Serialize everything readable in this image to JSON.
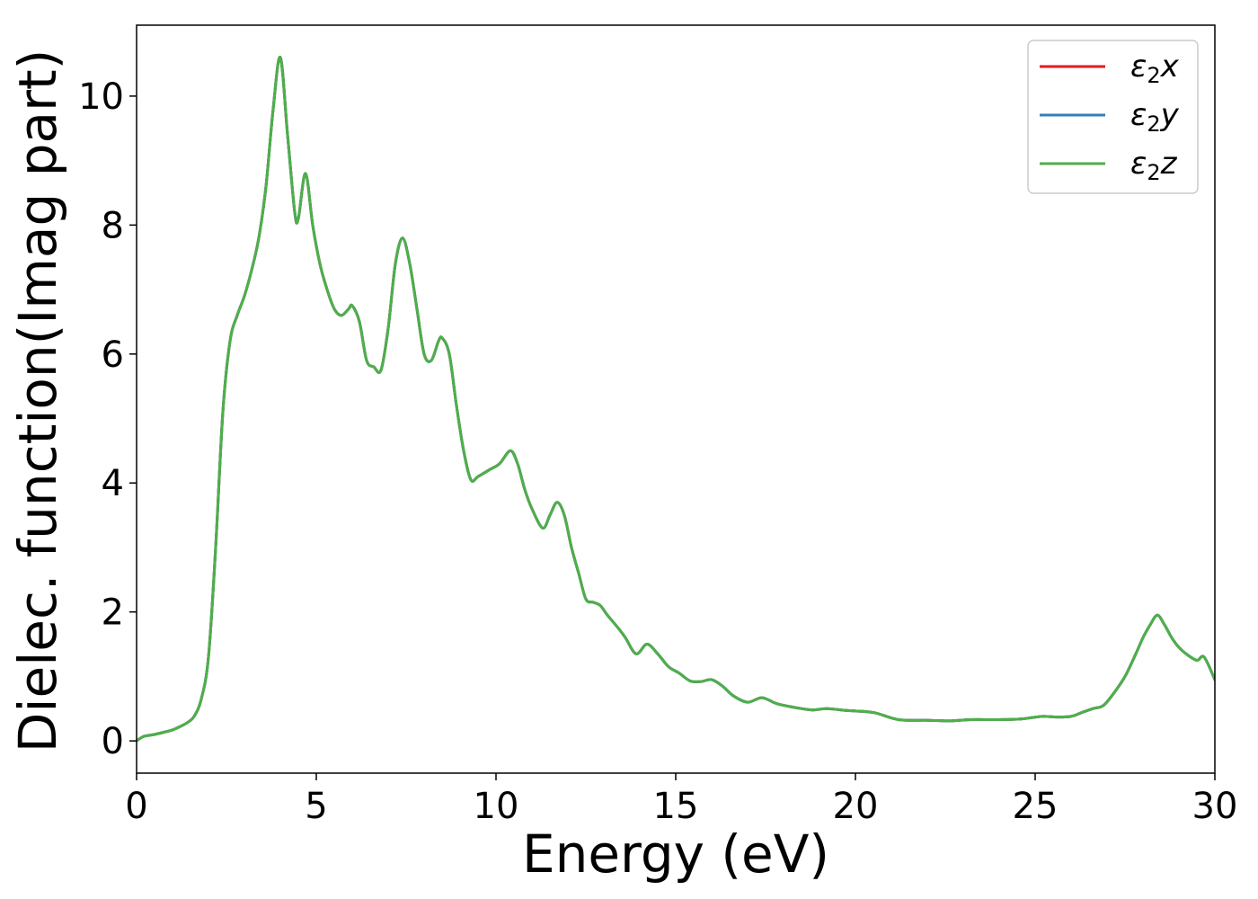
{
  "chart_data": {
    "type": "line",
    "title": "",
    "xlabel": "Energy (eV)",
    "ylabel": "Dielec. function(Imag part)",
    "xlim": [
      0,
      30
    ],
    "ylim": [
      -0.5,
      11.1
    ],
    "xticks": [
      0,
      5,
      10,
      15,
      20,
      25,
      30
    ],
    "yticks": [
      0,
      2,
      4,
      6,
      8,
      10
    ],
    "grid": false,
    "legend_position": "top-right",
    "series": [
      {
        "name": "ε2x",
        "label_base": "ε",
        "label_sub": "2",
        "label_var": "x",
        "color": "#e41a1c"
      },
      {
        "name": "ε2y",
        "label_base": "ε",
        "label_sub": "2",
        "label_var": "y",
        "color": "#377eb8"
      },
      {
        "name": "ε2z",
        "label_base": "ε",
        "label_sub": "2",
        "label_var": "z",
        "color": "#4daf4a"
      }
    ],
    "x": [
      0,
      0.2,
      0.5,
      0.8,
      1.0,
      1.2,
      1.4,
      1.6,
      1.8,
      2.0,
      2.2,
      2.4,
      2.6,
      2.8,
      3.0,
      3.2,
      3.4,
      3.6,
      3.8,
      4.0,
      4.2,
      4.4,
      4.5,
      4.7,
      4.9,
      5.1,
      5.3,
      5.5,
      5.7,
      5.9,
      6.0,
      6.2,
      6.4,
      6.6,
      6.8,
      7.0,
      7.2,
      7.4,
      7.6,
      7.8,
      8.0,
      8.2,
      8.4,
      8.5,
      8.7,
      8.9,
      9.1,
      9.3,
      9.5,
      9.8,
      10.1,
      10.4,
      10.6,
      10.8,
      11.0,
      11.3,
      11.5,
      11.7,
      11.9,
      12.1,
      12.3,
      12.5,
      12.7,
      12.9,
      13.1,
      13.4,
      13.6,
      13.9,
      14.2,
      14.5,
      14.8,
      15.1,
      15.4,
      15.7,
      16.0,
      16.3,
      16.6,
      17.0,
      17.4,
      17.8,
      18.3,
      18.8,
      19.2,
      19.8,
      20.5,
      21.2,
      22.0,
      22.6,
      23.2,
      24.0,
      24.6,
      25.2,
      25.6,
      26.0,
      26.3,
      26.6,
      26.9,
      27.2,
      27.5,
      27.8,
      28.0,
      28.2,
      28.4,
      28.6,
      28.8,
      29.0,
      29.2,
      29.5,
      29.7,
      30.0
    ],
    "y": [
      0.0,
      0.07,
      0.1,
      0.14,
      0.17,
      0.22,
      0.28,
      0.38,
      0.65,
      1.3,
      3.0,
      5.1,
      6.2,
      6.6,
      6.9,
      7.3,
      7.8,
      8.6,
      9.8,
      10.6,
      9.4,
      8.2,
      8.1,
      8.8,
      8.0,
      7.4,
      7.0,
      6.7,
      6.6,
      6.7,
      6.75,
      6.5,
      5.9,
      5.8,
      5.75,
      6.4,
      7.4,
      7.8,
      7.4,
      6.7,
      6.0,
      5.9,
      6.2,
      6.25,
      6.0,
      5.2,
      4.5,
      4.05,
      4.1,
      4.2,
      4.3,
      4.5,
      4.3,
      3.9,
      3.6,
      3.3,
      3.5,
      3.7,
      3.5,
      3.0,
      2.6,
      2.2,
      2.15,
      2.1,
      1.95,
      1.75,
      1.6,
      1.35,
      1.5,
      1.35,
      1.15,
      1.05,
      0.93,
      0.92,
      0.95,
      0.85,
      0.7,
      0.6,
      0.67,
      0.58,
      0.52,
      0.48,
      0.5,
      0.47,
      0.44,
      0.33,
      0.32,
      0.31,
      0.33,
      0.33,
      0.34,
      0.38,
      0.37,
      0.38,
      0.44,
      0.5,
      0.55,
      0.75,
      1.0,
      1.35,
      1.6,
      1.8,
      1.95,
      1.8,
      1.6,
      1.45,
      1.35,
      1.25,
      1.3,
      0.95
    ]
  }
}
